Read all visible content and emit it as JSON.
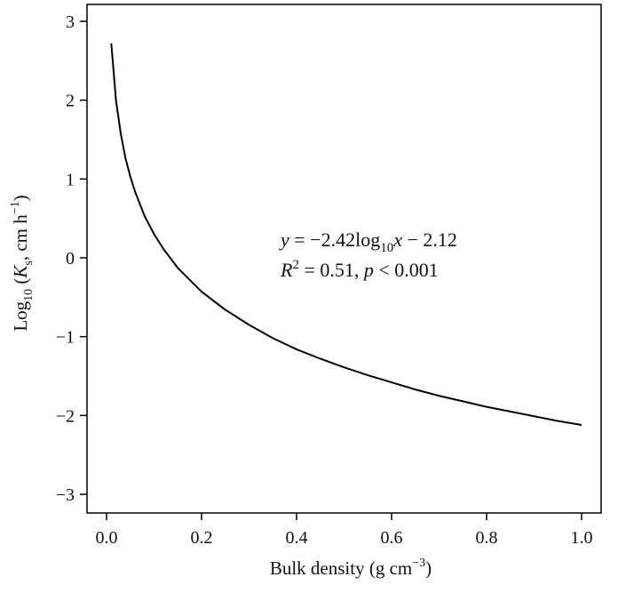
{
  "chart_data": {
    "type": "line",
    "title": "",
    "xlabel": {
      "base": "Bulk density (g cm",
      "sup": "−3",
      "tail": ")"
    },
    "ylabel": {
      "pre": "Log",
      "sub": "10",
      "mid": " (",
      "var": "K",
      "var_sub": "s",
      "tail": ", cm h",
      "sup": "−1",
      "close": ")"
    },
    "xlim": [
      0.0,
      1.0
    ],
    "ylim": [
      -3,
      3
    ],
    "x_ticks": [
      0.0,
      0.2,
      0.4,
      0.6,
      0.8,
      1.0
    ],
    "x_tick_labels": [
      "0.0",
      "0.2",
      "0.4",
      "0.6",
      "0.8",
      "1.0"
    ],
    "y_ticks": [
      -3,
      -2,
      -1,
      0,
      1,
      2,
      3
    ],
    "y_tick_labels": [
      "−3",
      "−2",
      "−1",
      "0",
      "1",
      "2",
      "3"
    ],
    "grid": false,
    "legend": "none",
    "series": [
      {
        "x": [
          0.01,
          0.02,
          0.03,
          0.04,
          0.05,
          0.06,
          0.08,
          0.1,
          0.12,
          0.15,
          0.2,
          0.25,
          0.3,
          0.35,
          0.4,
          0.45,
          0.5,
          0.55,
          0.6,
          0.65,
          0.7,
          0.75,
          0.8,
          0.85,
          0.9,
          0.95,
          1.0
        ],
        "y": [
          2.72,
          1.99,
          1.57,
          1.26,
          1.03,
          0.84,
          0.53,
          0.3,
          0.11,
          -0.13,
          -0.43,
          -0.66,
          -0.85,
          -1.02,
          -1.16,
          -1.28,
          -1.39,
          -1.49,
          -1.58,
          -1.67,
          -1.75,
          -1.82,
          -1.89,
          -1.95,
          -2.01,
          -2.07,
          -2.12
        ],
        "color": "#000000"
      }
    ],
    "annotation": {
      "eq_y": "y",
      "eq_mid": " = −2.42log",
      "eq_sub": "10",
      "eq_x": "x",
      "eq_tail": " − 2.12",
      "r_var": "R",
      "r_sup": "2",
      "r_mid": " = 0.51, ",
      "p_var": "p",
      "p_tail": " < 0.001"
    }
  }
}
